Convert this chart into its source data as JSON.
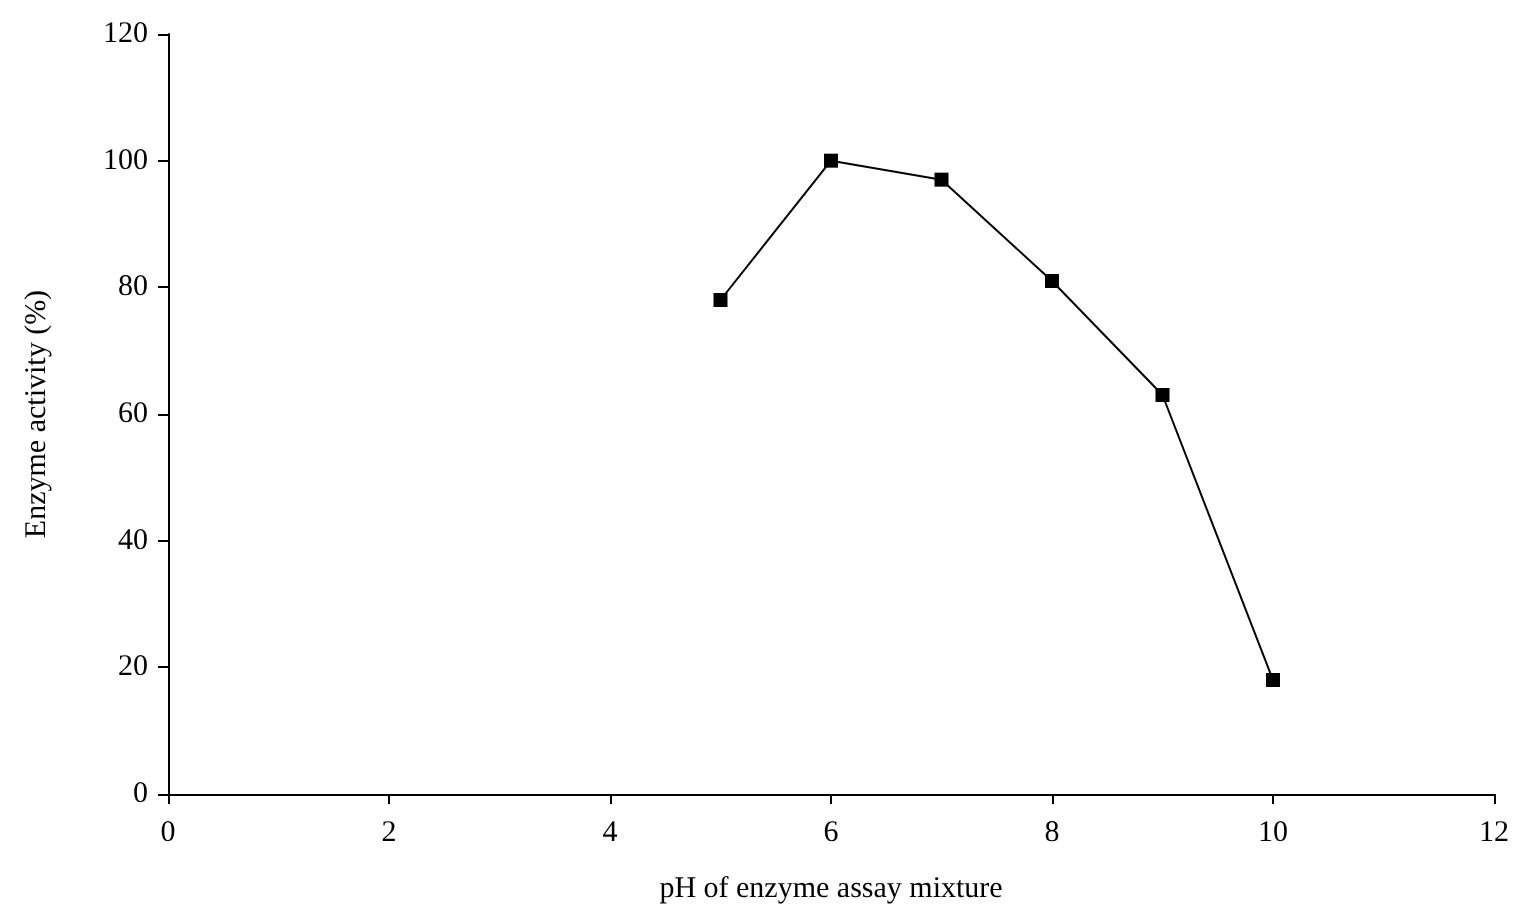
{
  "chart_data": {
    "type": "line",
    "xlabel": "pH of enzyme assay mixture",
    "ylabel": "Enzyme activity (%)",
    "x": [
      5,
      6,
      7,
      8,
      9,
      10
    ],
    "series": [
      {
        "color": "#000000",
        "values": [
          78,
          100,
          97,
          81,
          63,
          18
        ]
      }
    ],
    "xlim": [
      0,
      12
    ],
    "xticks": [
      0,
      2,
      4,
      6,
      8,
      10,
      12
    ],
    "ylim": [
      0,
      120
    ],
    "yticks": [
      0,
      20,
      40,
      60,
      80,
      100,
      120
    ],
    "marker": "square",
    "line_style": "solid"
  }
}
